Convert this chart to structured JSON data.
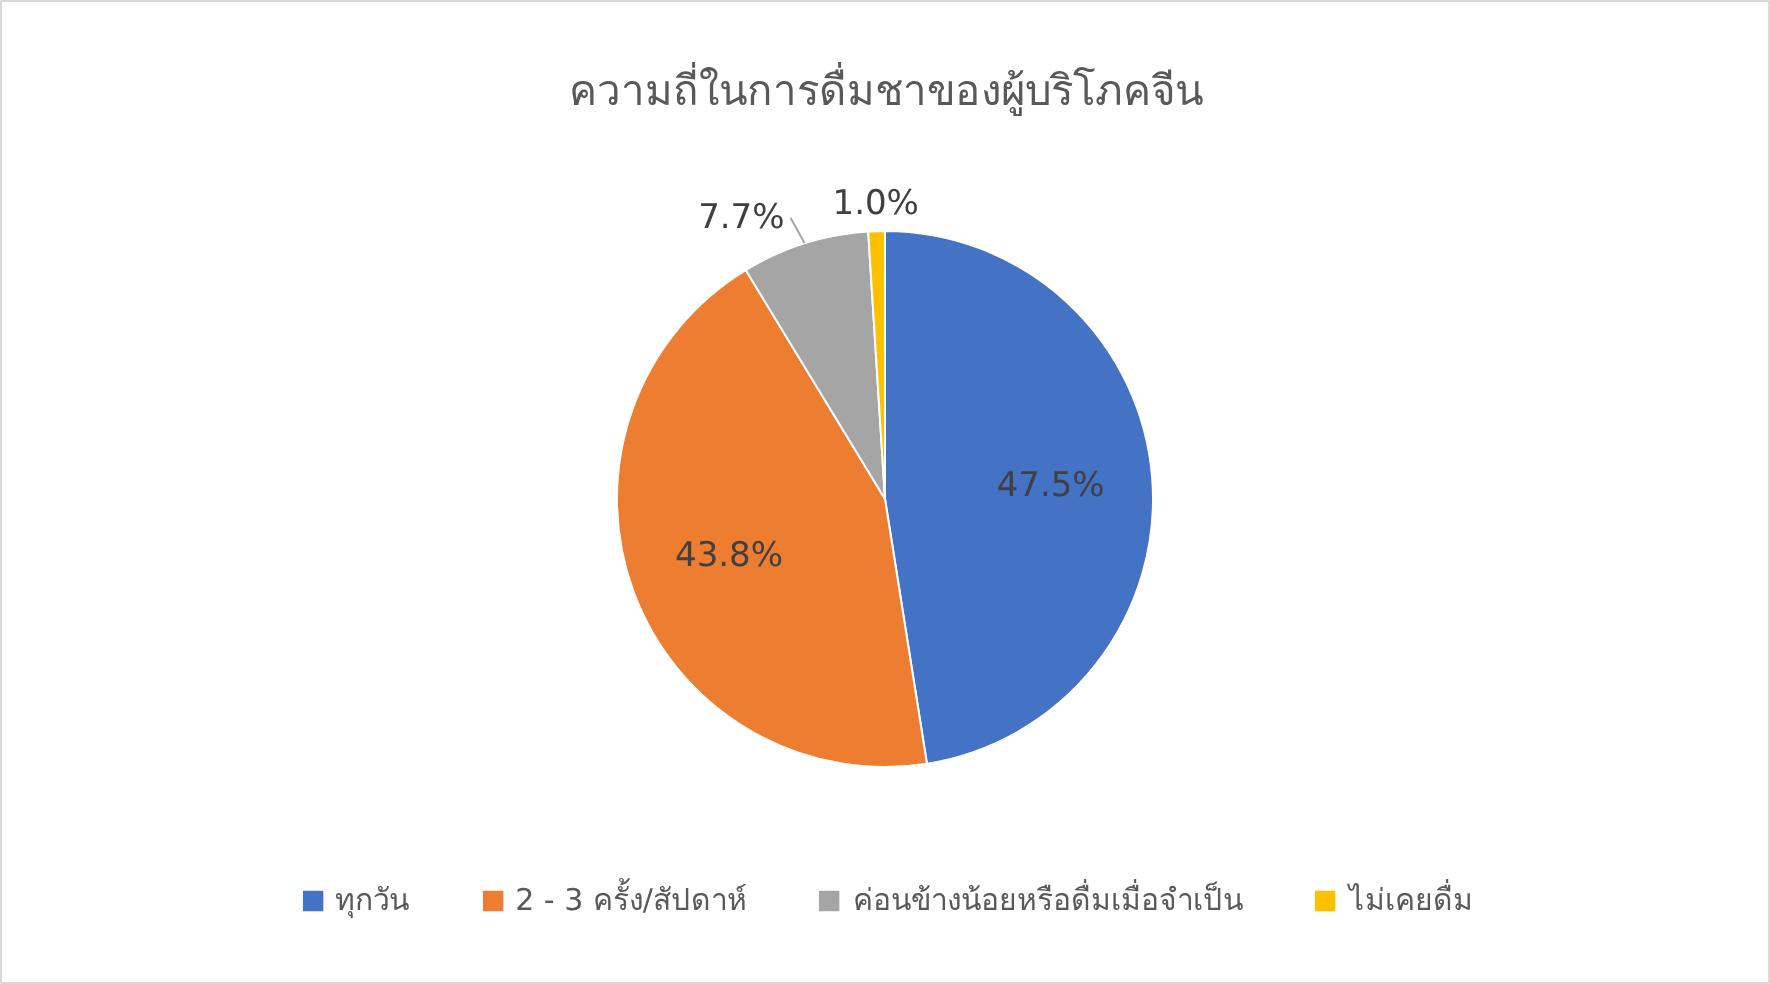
{
  "chart_data": {
    "type": "pie",
    "title": "ความถี่ในการดื่มชาของผู้บริโภคจีน",
    "categories": [
      "ทุกวัน",
      "2 - 3 ครั้ง/สัปดาห์",
      "ค่อนข้างน้อยหรือดื่มเมื่อจำเป็น",
      "ไม่เคยดื่ม"
    ],
    "values": [
      47.5,
      43.8,
      7.7,
      1.0
    ],
    "colors": [
      "#4472c4",
      "#ed7d31",
      "#a5a5a5",
      "#ffc000"
    ],
    "value_labels": [
      "47.5%",
      "43.8%",
      "7.7%",
      "1.0%"
    ],
    "legend": "bottom"
  }
}
